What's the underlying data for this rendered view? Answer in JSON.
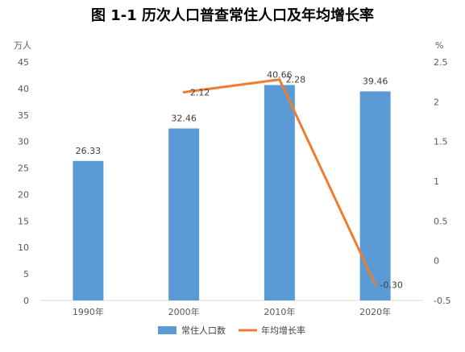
{
  "page": {
    "title": "图 1-1  历次人口普查常住人口及年均增长率"
  },
  "chart_data": {
    "type": "bar",
    "title": "图 1-1  历次人口普查常住人口及年均增长率",
    "categories": [
      "1990年",
      "2000年",
      "2010年",
      "2020年"
    ],
    "series": [
      {
        "name": "常住人口数",
        "type": "bar",
        "axis": "left",
        "color": "#5B9BD5",
        "values": [
          26.33,
          32.46,
          40.66,
          39.46
        ],
        "labels": [
          "26.33",
          "32.46",
          "40.66",
          "39.46"
        ]
      },
      {
        "name": "年均增长率",
        "type": "line",
        "axis": "right",
        "color": "#ED7D31",
        "values": [
          null,
          2.12,
          2.28,
          -0.3
        ],
        "labels": [
          "",
          "2.12",
          "2.28",
          "-0.30"
        ]
      }
    ],
    "y_left": {
      "unit_label": "万人",
      "range": [
        0,
        45
      ],
      "ticks": [
        0,
        5,
        10,
        15,
        20,
        25,
        30,
        35,
        40,
        45
      ],
      "tick_labels": [
        "0",
        "5",
        "10",
        "15",
        "20",
        "25",
        "30",
        "35",
        "40",
        "45"
      ]
    },
    "y_right": {
      "unit_label": "%",
      "range": [
        -0.5,
        2.5
      ],
      "ticks": [
        -0.5,
        0,
        0.5,
        1,
        1.5,
        2,
        2.5
      ],
      "tick_labels": [
        "-0.5",
        "0",
        "0.5",
        "1",
        "1.5",
        "2",
        "2.5"
      ]
    },
    "grid": false,
    "legend": "bottom"
  }
}
